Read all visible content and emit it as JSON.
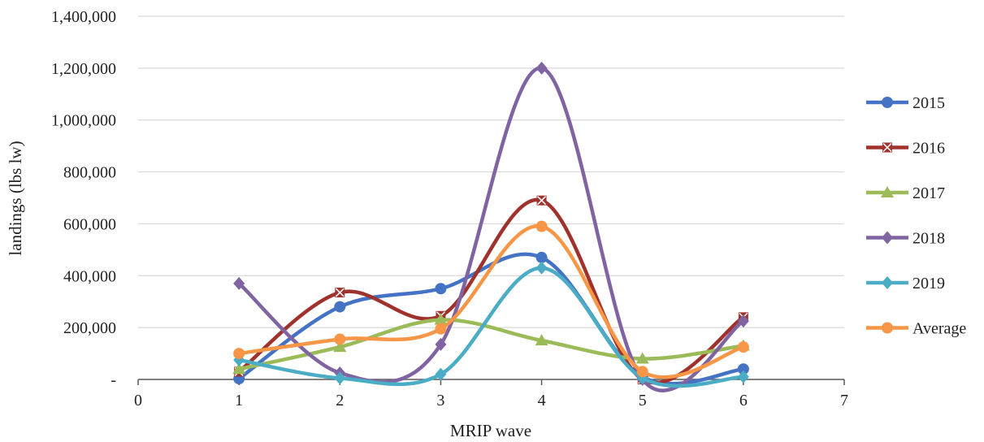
{
  "chart_data": {
    "type": "line",
    "smooth": true,
    "title": "",
    "xlabel": "MRIP wave",
    "ylabel": "landings (lbs lw)",
    "xlim": [
      0,
      7
    ],
    "ylim": [
      0,
      1400000
    ],
    "x_ticks": [
      0,
      1,
      2,
      3,
      4,
      5,
      6,
      7
    ],
    "y_ticks": [
      0,
      200000,
      400000,
      600000,
      800000,
      1000000,
      1200000,
      1400000
    ],
    "y_tick_labels": [
      "-",
      "200,000",
      "400,000",
      "600,000",
      "800,000",
      "1,000,000",
      "1,200,000",
      "1,400,000"
    ],
    "grid": "horizontal",
    "legend_position": "right",
    "x": [
      1,
      2,
      3,
      4,
      5,
      6
    ],
    "series": [
      {
        "name": "2015",
        "color": "#4472C4",
        "marker": "circle",
        "values": [
          3000,
          280000,
          350000,
          470000,
          10000,
          40000
        ]
      },
      {
        "name": "2016",
        "color": "#A0322D",
        "marker": "x-square",
        "values": [
          30000,
          335000,
          245000,
          690000,
          0,
          240000
        ]
      },
      {
        "name": "2017",
        "color": "#9BBB59",
        "marker": "triangle",
        "values": [
          40000,
          125000,
          230000,
          150000,
          80000,
          130000
        ]
      },
      {
        "name": "2018",
        "color": "#8064A2",
        "marker": "diamond",
        "values": [
          370000,
          25000,
          135000,
          1200000,
          0,
          225000
        ]
      },
      {
        "name": "2019",
        "color": "#4BACC6",
        "marker": "diamond",
        "values": [
          75000,
          5000,
          20000,
          430000,
          5000,
          10000
        ]
      },
      {
        "name": "Average",
        "color": "#F79646",
        "marker": "circle",
        "values": [
          100000,
          155000,
          195000,
          590000,
          30000,
          125000
        ]
      }
    ]
  }
}
